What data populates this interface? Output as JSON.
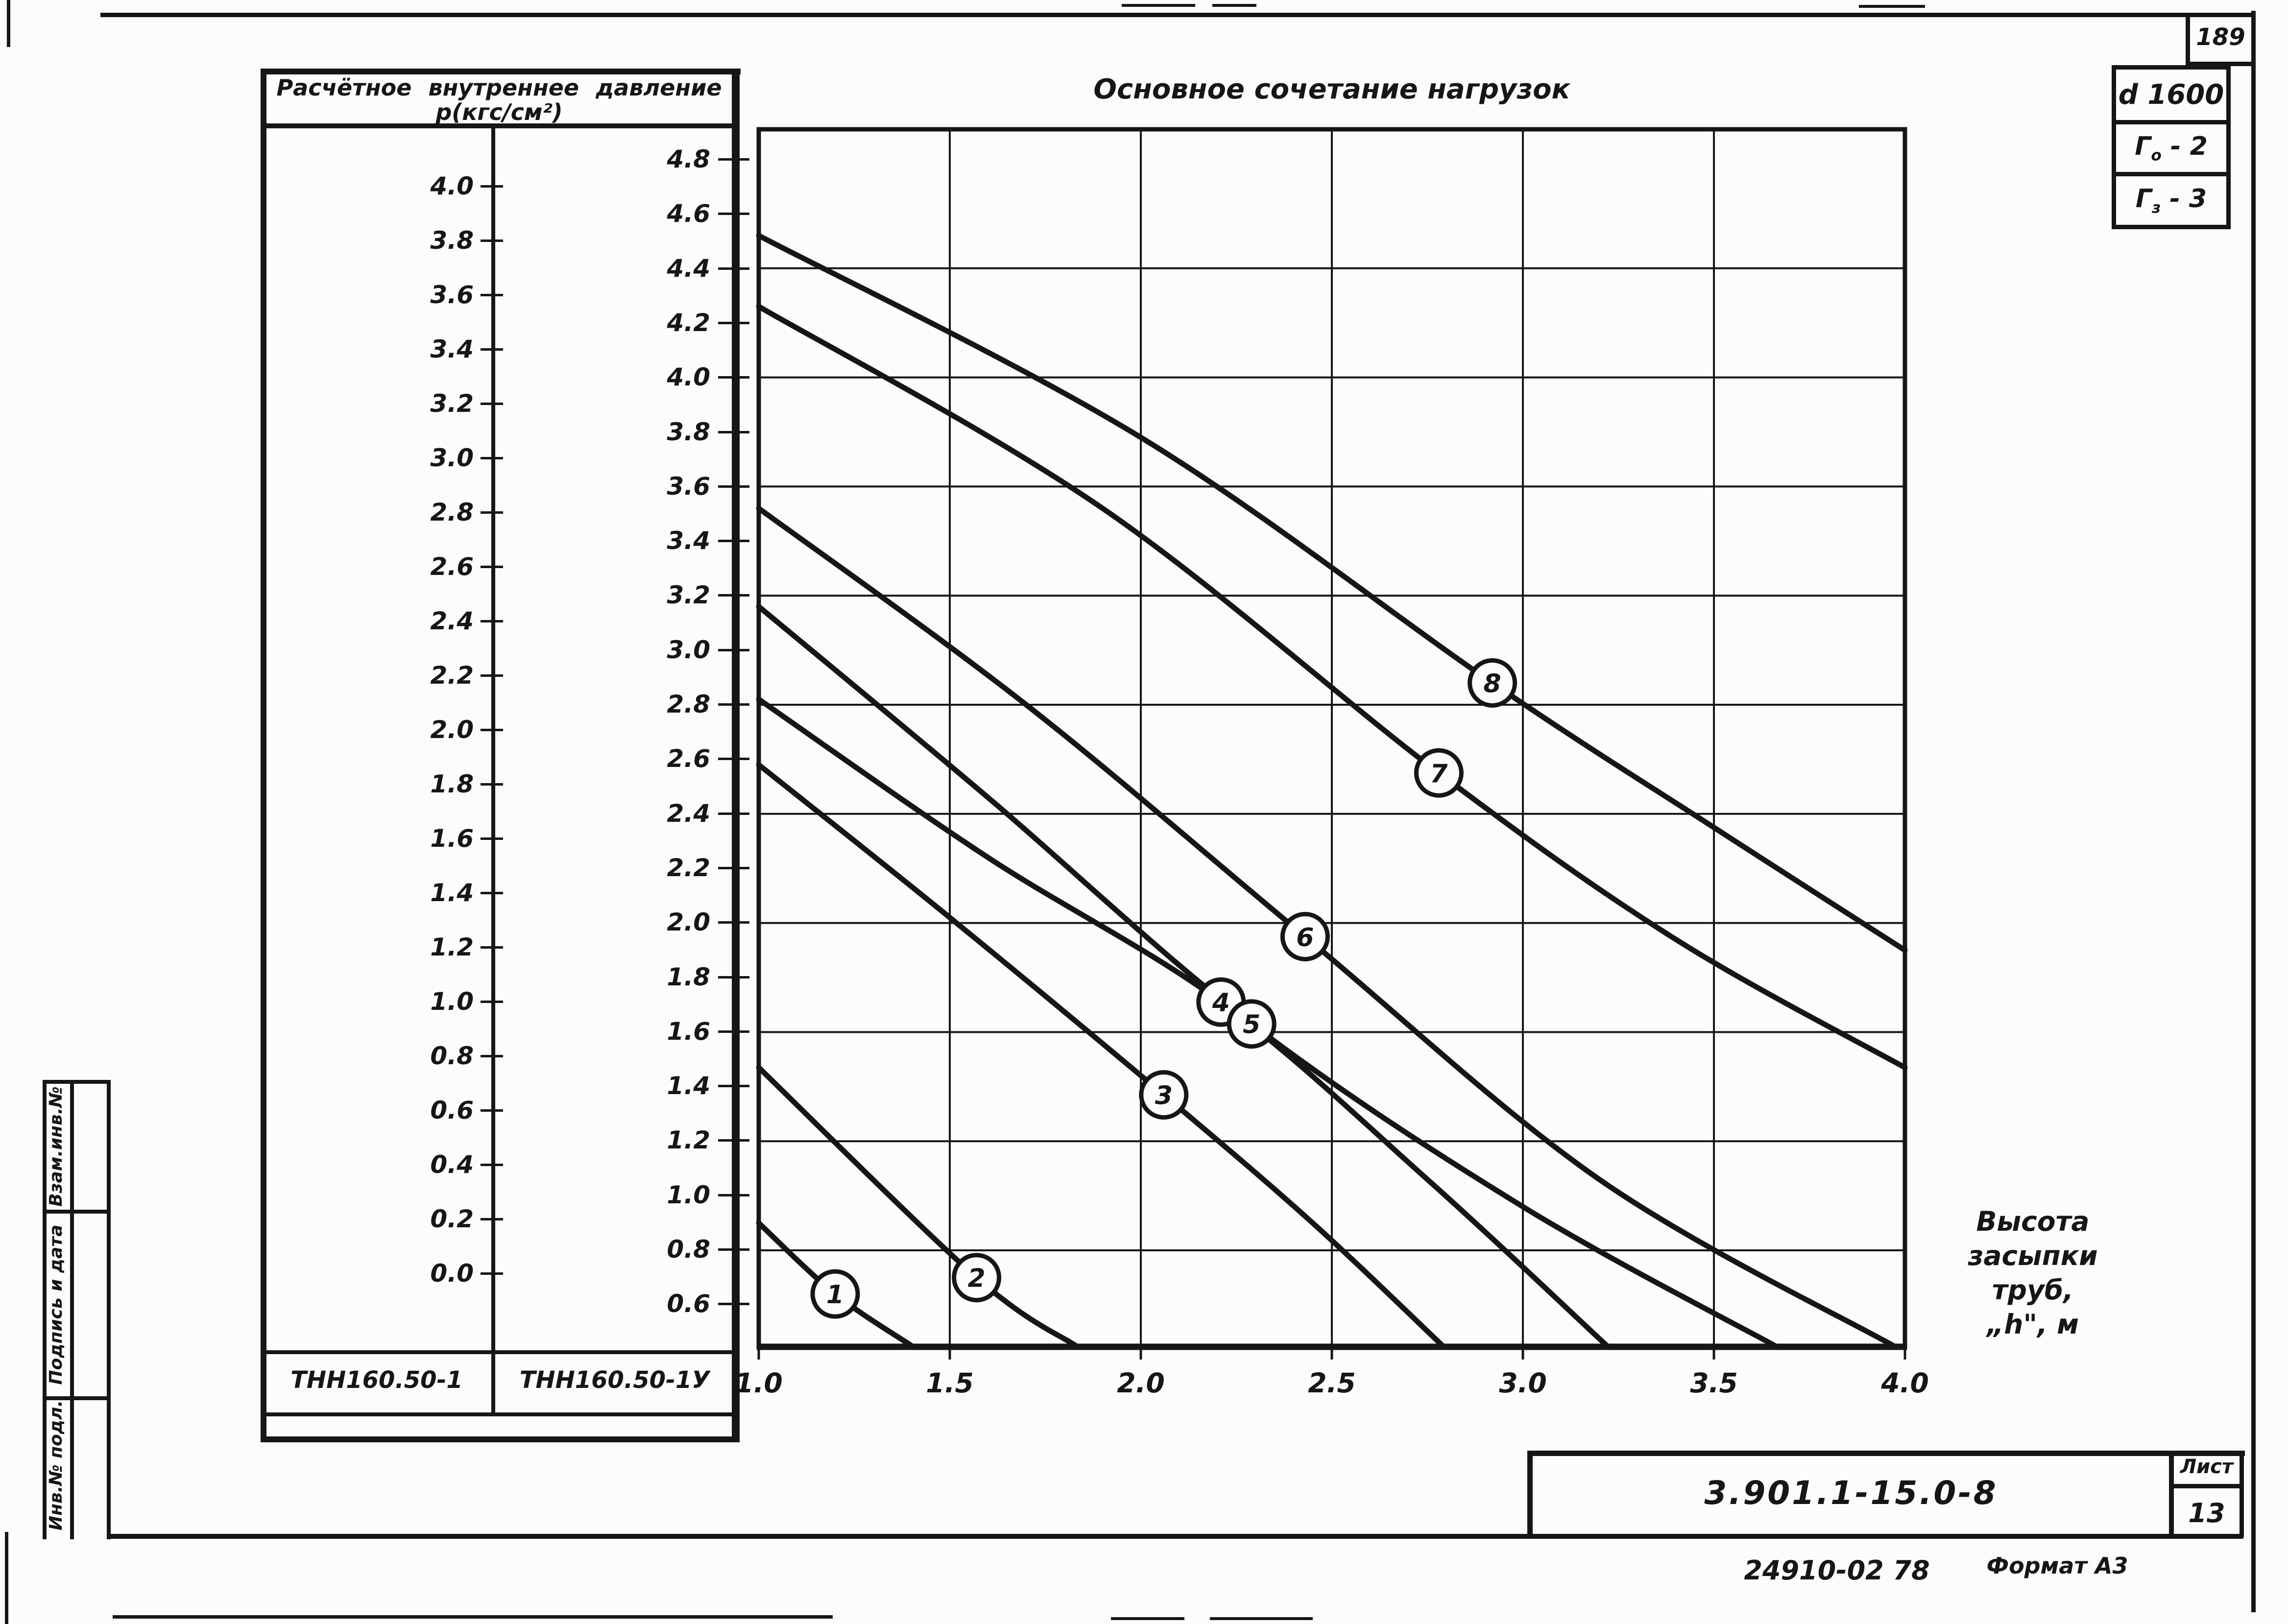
{
  "page_number": "189",
  "frame_tags": {
    "diameter": "d 1600",
    "tag_go": {
      "letter": "Г",
      "sub": "о",
      "rest": "- 2"
    },
    "tag_gz": {
      "letter": "Г",
      "sub": "з",
      "rest": "- 3"
    }
  },
  "stamp_column": {
    "cells": [
      "Взам.инв.№",
      "Подпись и дата",
      "Инв.№ подл."
    ]
  },
  "pressure_table": {
    "header_line1": "Расчётное  внутреннее  давление",
    "header_line2": "р(кгс/см²)",
    "left_scale": {
      "values": [
        "4.0",
        "3.8",
        "3.6",
        "3.4",
        "3.2",
        "3.0",
        "2.8",
        "2.6",
        "2.4",
        "2.2",
        "2.0",
        "1.8",
        "1.6",
        "1.4",
        "1.2",
        "1.0",
        "0.8",
        "0.6",
        "0.4",
        "0.2",
        "0.0"
      ],
      "footer": "ТНН160.50-1"
    },
    "right_scale": {
      "values": [
        "4.8",
        "4.6",
        "4.4",
        "4.2",
        "4.0",
        "3.8",
        "3.6",
        "3.4",
        "3.2",
        "3.0",
        "2.8",
        "2.6",
        "2.4",
        "2.2",
        "2.0",
        "1.8",
        "1.6",
        "1.4",
        "1.2",
        "1.0",
        "0.8",
        "0.6"
      ],
      "footer": "ТНН160.50-1У"
    }
  },
  "chart_data": {
    "type": "line",
    "title": "Основное   сочетание   нагрузок",
    "xlabel": "Высота засыпки труб, „h\", м",
    "xlabel_lines": [
      "Высота",
      "засыпки",
      "труб,",
      "„h\", м"
    ],
    "ylabel": "Расчётное внутреннее давление р(кгс/см²)",
    "x_range": [
      1.0,
      4.0
    ],
    "x_ticks": [
      "1.0",
      "1.5",
      "2.0",
      "2.5",
      "3.0",
      "3.5",
      "4.0"
    ],
    "x_grid_values": [
      1.5,
      2.0,
      2.5,
      3.0,
      3.5
    ],
    "y_grid_values": [
      4.4,
      4.0,
      3.6,
      3.2,
      2.8,
      2.4,
      2.0,
      1.6,
      1.2,
      0.8
    ],
    "y_scale_right_column": {
      "top_value": 4.8,
      "bottom_value": 0.6,
      "step": 0.2
    },
    "y_scale_left_column": {
      "top_value": 4.0,
      "bottom_value": 0.0,
      "step": 0.2
    },
    "grid": true,
    "series": [
      {
        "name": "1",
        "marker_h": 1.2,
        "points": [
          [
            1.0,
            0.9
          ],
          [
            1.2,
            0.64
          ],
          [
            1.4,
            0.45
          ]
        ]
      },
      {
        "name": "2",
        "marker_h": 1.57,
        "points": [
          [
            1.0,
            1.47
          ],
          [
            1.57,
            0.7
          ],
          [
            1.83,
            0.45
          ]
        ]
      },
      {
        "name": "3",
        "marker_h": 2.06,
        "points": [
          [
            1.0,
            2.58
          ],
          [
            1.5,
            2.02
          ],
          [
            2.06,
            1.37
          ],
          [
            2.45,
            0.9
          ],
          [
            2.79,
            0.45
          ]
        ]
      },
      {
        "name": "4",
        "marker_h": 2.21,
        "points": [
          [
            1.0,
            2.82
          ],
          [
            1.6,
            2.24
          ],
          [
            2.21,
            1.71
          ],
          [
            2.75,
            1.06
          ],
          [
            3.22,
            0.45
          ]
        ]
      },
      {
        "name": "5",
        "marker_h": 2.29,
        "points": [
          [
            1.0,
            3.16
          ],
          [
            1.6,
            2.46
          ],
          [
            2.29,
            1.63
          ],
          [
            3.0,
            0.96
          ],
          [
            3.66,
            0.45
          ]
        ]
      },
      {
        "name": "6",
        "marker_h": 2.43,
        "points": [
          [
            1.0,
            3.52
          ],
          [
            1.7,
            2.8
          ],
          [
            2.43,
            1.95
          ],
          [
            3.2,
            1.06
          ],
          [
            3.97,
            0.45
          ]
        ]
      },
      {
        "name": "7",
        "marker_h": 2.78,
        "points": [
          [
            1.0,
            4.26
          ],
          [
            1.9,
            3.52
          ],
          [
            2.78,
            2.55
          ],
          [
            3.4,
            1.94
          ],
          [
            4.0,
            1.47
          ]
        ]
      },
      {
        "name": "8",
        "marker_h": 2.92,
        "points": [
          [
            1.0,
            4.52
          ],
          [
            2.0,
            3.78
          ],
          [
            2.92,
            2.88
          ],
          [
            3.5,
            2.35
          ],
          [
            4.0,
            1.9
          ]
        ]
      }
    ]
  },
  "title_block": {
    "doc_number": "3.901.1-15.0-8",
    "sheet_label": "Лист",
    "sheet_number": "13",
    "stamp_code": "24910-02   78",
    "format_label": "Формат А3"
  }
}
